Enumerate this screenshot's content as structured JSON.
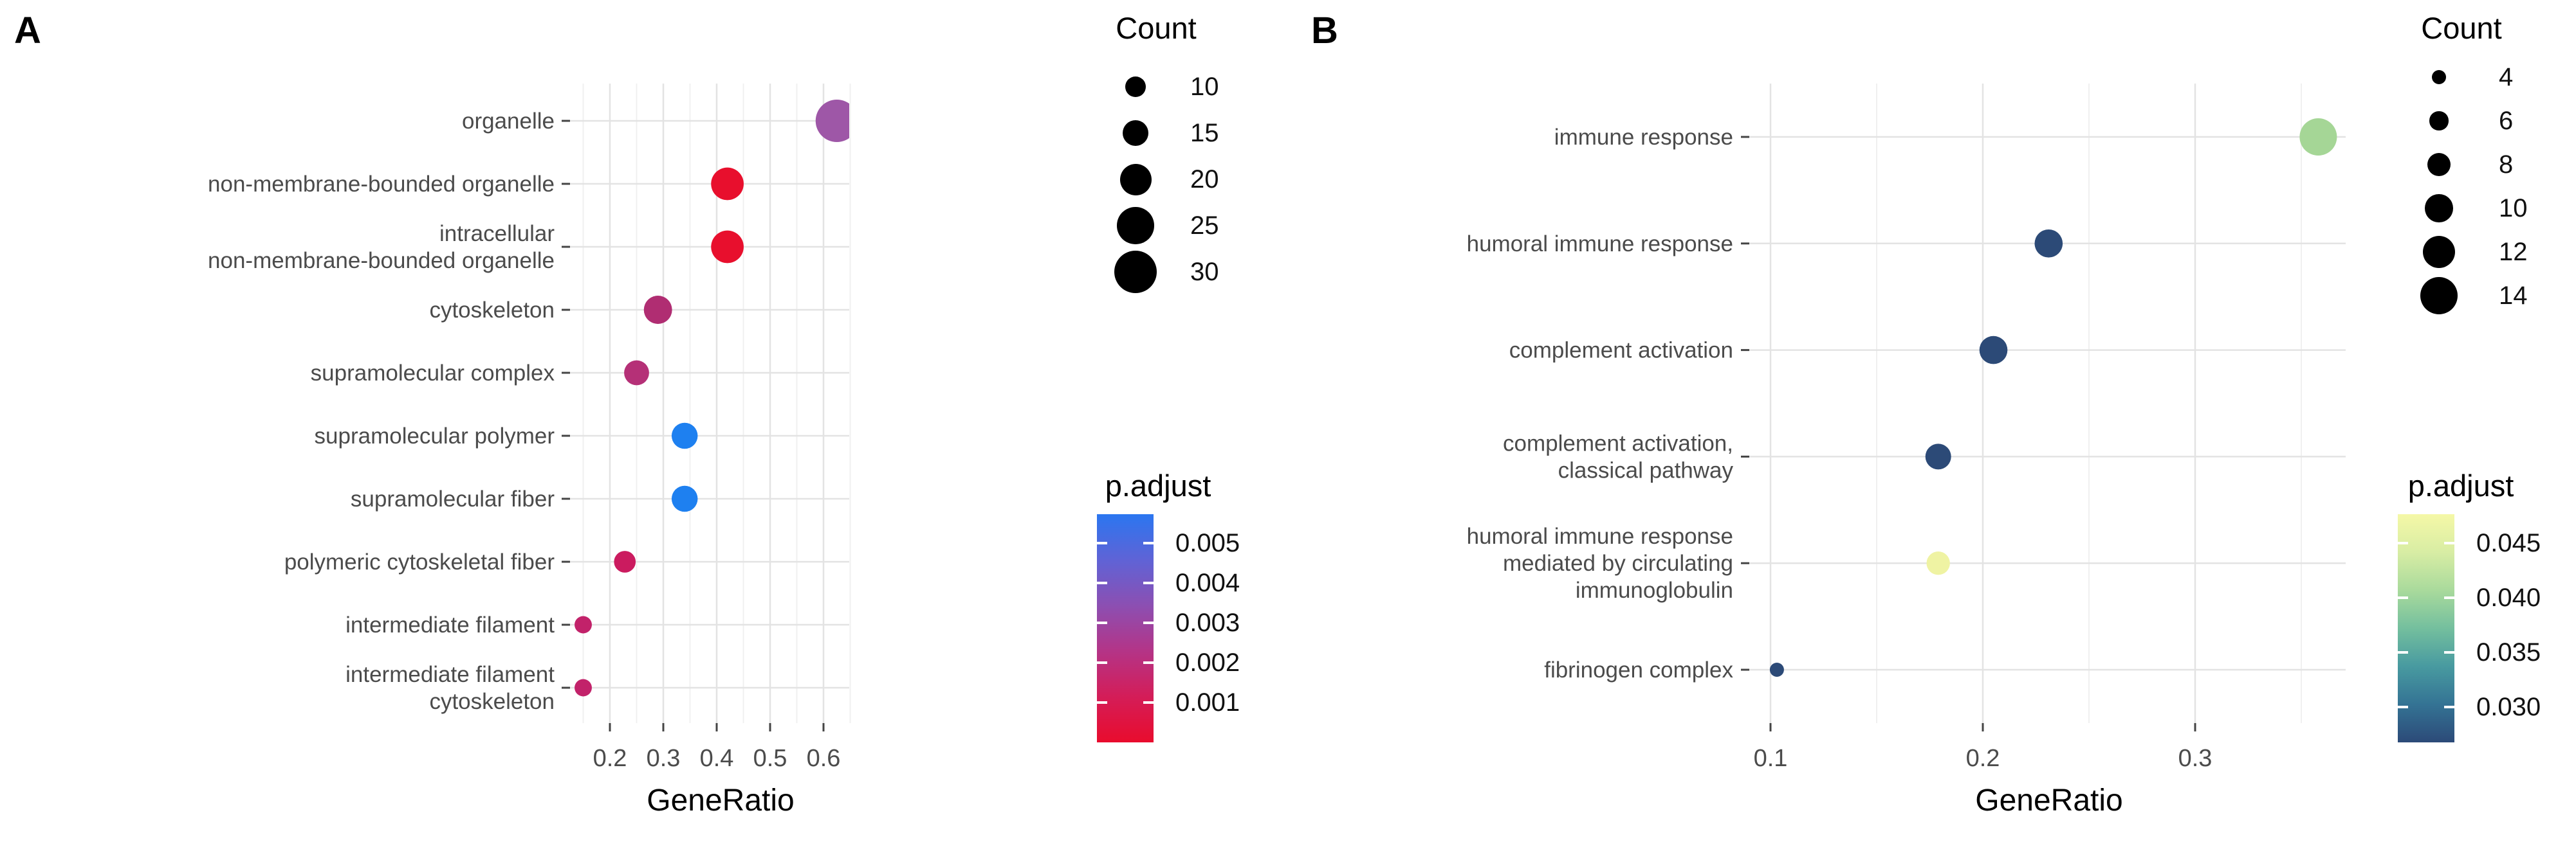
{
  "figure": {
    "background": "#ffffff"
  },
  "chart_data": [
    {
      "panel": "A",
      "type": "scatter",
      "title": "",
      "xlabel": "GeneRatio",
      "ylabel": "",
      "grid": true,
      "legend_position": "right",
      "x_ticks": [
        "0.2",
        "0.3",
        "0.4",
        "0.5",
        "0.6"
      ],
      "x_tick_values": [
        0.2,
        0.3,
        0.4,
        0.5,
        0.6
      ],
      "x_minor_values": [
        0.15,
        0.25,
        0.35,
        0.45,
        0.55,
        0.65
      ],
      "xlim": [
        0.126,
        0.649
      ],
      "categories": [
        "organelle",
        "non-membrane-bounded organelle",
        "intracellular non-membrane-bounded organelle",
        "cytoskeleton",
        "supramolecular complex",
        "supramolecular polymer",
        "supramolecular fiber",
        "polymeric cytoskeletal fiber",
        "intermediate filament",
        "intermediate filament cytoskeleton"
      ],
      "category_lines": [
        [
          "organelle"
        ],
        [
          "non-membrane-bounded organelle"
        ],
        [
          "intracellular",
          "non-membrane-bounded organelle"
        ],
        [
          "cytoskeleton"
        ],
        [
          "supramolecular complex"
        ],
        [
          "supramolecular polymer"
        ],
        [
          "supramolecular fiber"
        ],
        [
          "polymeric cytoskeletal fiber"
        ],
        [
          "intermediate filament"
        ],
        [
          "intermediate filament",
          "cytoskeleton"
        ]
      ],
      "gene_ratio": [
        0.625,
        0.42,
        0.42,
        0.29,
        0.25,
        0.34,
        0.34,
        0.228,
        0.15,
        0.15
      ],
      "count": [
        30,
        21,
        21,
        17,
        14,
        15,
        15,
        11,
        7,
        7
      ],
      "p_adjust": [
        0.003,
        0.0008,
        0.0008,
        0.0019,
        0.0021,
        0.005,
        0.005,
        0.0013,
        0.0016,
        0.0016
      ],
      "dot_colors": [
        "#9e57a7",
        "#e80f2d",
        "#e80f2d",
        "#b02d72",
        "#b53077",
        "#1e80f0",
        "#1e80f0",
        "#cb1b5f",
        "#c2226a",
        "#c2226a"
      ],
      "count_legend": {
        "title": "Count",
        "values": [
          10,
          15,
          20,
          25,
          30
        ]
      },
      "color_legend": {
        "title": "p.adjust",
        "ticks": [
          "0.005",
          "0.004",
          "0.003",
          "0.002",
          "0.001"
        ],
        "high_color": "#2b76f0",
        "low_color": "#e90c2d",
        "gradient_top_to_bottom": [
          "#2b76f0",
          "#5f63d6",
          "#8c4fb2",
          "#b43487",
          "#d41d58",
          "#e90c2d"
        ]
      }
    },
    {
      "panel": "B",
      "type": "scatter",
      "title": "",
      "xlabel": "GeneRatio",
      "ylabel": "",
      "grid": true,
      "legend_position": "right",
      "x_ticks": [
        "0.1",
        "0.2",
        "0.3"
      ],
      "x_tick_values": [
        0.1,
        0.2,
        0.3
      ],
      "x_minor_values": [
        0.15,
        0.25,
        0.35
      ],
      "xlim": [
        0.09,
        0.371
      ],
      "categories": [
        "immune response",
        "humoral immune response",
        "complement activation",
        "complement activation, classical pathway",
        "humoral immune response mediated by circulating immunoglobulin",
        "fibrinogen complex"
      ],
      "category_lines": [
        [
          "immune response"
        ],
        [
          "humoral immune response"
        ],
        [
          "complement activation"
        ],
        [
          "complement activation,",
          "classical pathway"
        ],
        [
          "humoral immune response",
          "mediated by circulating",
          "immunoglobulin"
        ],
        [
          "fibrinogen complex"
        ]
      ],
      "gene_ratio": [
        0.358,
        0.231,
        0.205,
        0.179,
        0.179,
        0.103
      ],
      "count": [
        14,
        10,
        10,
        9,
        8,
        4
      ],
      "p_adjust": [
        0.043,
        0.03,
        0.03,
        0.029,
        0.047,
        0.029
      ],
      "dot_colors": [
        "#a5d696",
        "#2c4a77",
        "#2c4a77",
        "#2c4a77",
        "#eff3a3",
        "#2c4a77"
      ],
      "count_legend": {
        "title": "Count",
        "values": [
          4,
          6,
          8,
          10,
          12,
          14
        ]
      },
      "color_legend": {
        "title": "p.adjust",
        "ticks": [
          "0.045",
          "0.040",
          "0.035",
          "0.030"
        ],
        "high_color": "#f5f8a7",
        "low_color": "#2c4a78",
        "gradient_top_to_bottom": [
          "#f5f8a7",
          "#d8eda4",
          "#a9da9c",
          "#74bf9e",
          "#489aa0",
          "#347394",
          "#2c4a78"
        ]
      }
    }
  ]
}
